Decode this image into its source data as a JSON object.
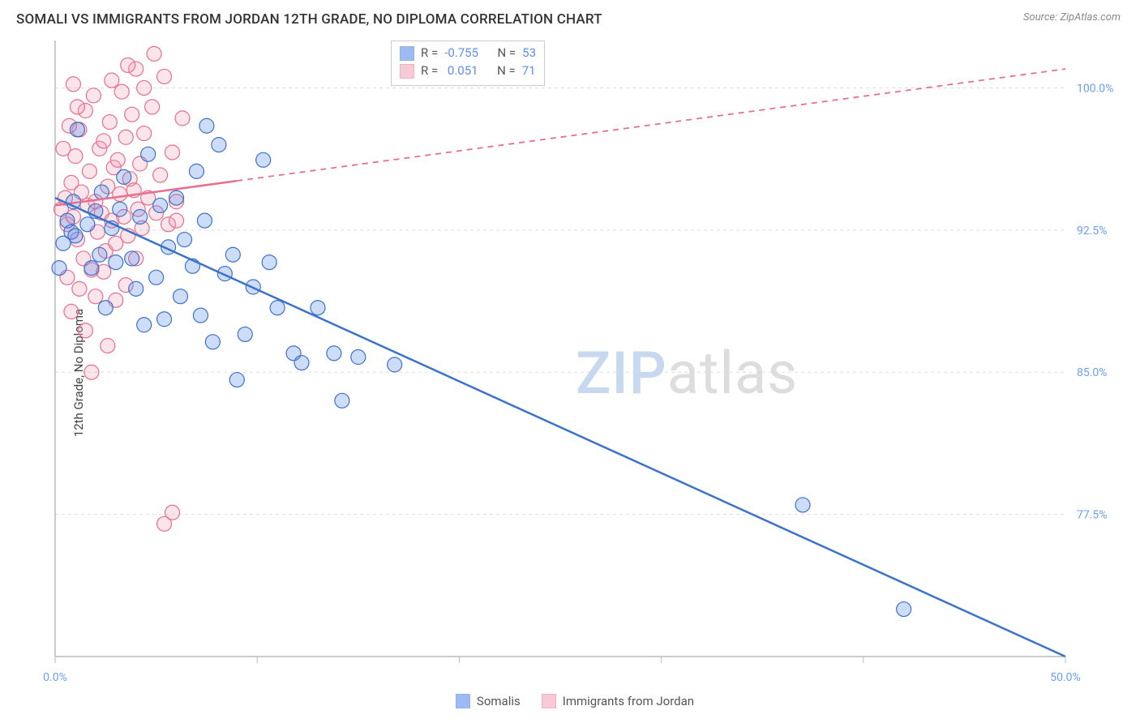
{
  "header": {
    "title": "SOMALI VS IMMIGRANTS FROM JORDAN 12TH GRADE, NO DIPLOMA CORRELATION CHART",
    "source_prefix": "Source: ",
    "source_name": "ZipAtlas.com"
  },
  "chart": {
    "type": "scatter",
    "ylabel": "12th Grade, No Diploma",
    "xlim": [
      0,
      50
    ],
    "ylim": [
      70,
      102.5
    ],
    "xticks": [
      0,
      10,
      20,
      30,
      40,
      50
    ],
    "xtick_labels": [
      "0.0%",
      "",
      "",
      "",
      "",
      "50.0%"
    ],
    "yticks": [
      77.5,
      85.0,
      92.5,
      100.0
    ],
    "ytick_labels": [
      "77.5%",
      "85.0%",
      "92.5%",
      "100.0%"
    ],
    "background_color": "#ffffff",
    "grid_color": "#dddddd",
    "axis_color": "#bbbbbb",
    "label_color_axis": "#6b9ff2",
    "marker_radius": 9,
    "marker_opacity": 0.28,
    "series": {
      "blue": {
        "name": "Somalis",
        "color": "#4a85e8",
        "stroke": "#3d72c9",
        "R": "-0.755",
        "N": "53",
        "regression": {
          "x1": 0,
          "y1": 94.2,
          "x2": 50,
          "y2": 70.0,
          "solid_until_x": 50
        },
        "points": [
          [
            0.4,
            91.8
          ],
          [
            0.6,
            93.0
          ],
          [
            0.8,
            92.4
          ],
          [
            0.9,
            94.0
          ],
          [
            1.0,
            92.2
          ],
          [
            1.6,
            92.8
          ],
          [
            1.1,
            97.8
          ],
          [
            1.8,
            90.5
          ],
          [
            2.0,
            93.5
          ],
          [
            2.2,
            91.2
          ],
          [
            2.3,
            94.5
          ],
          [
            2.5,
            88.4
          ],
          [
            2.8,
            92.6
          ],
          [
            3.0,
            90.8
          ],
          [
            3.2,
            93.6
          ],
          [
            3.4,
            95.3
          ],
          [
            3.8,
            91.0
          ],
          [
            4.0,
            89.4
          ],
          [
            4.2,
            93.2
          ],
          [
            4.4,
            87.5
          ],
          [
            4.6,
            96.5
          ],
          [
            5.0,
            90.0
          ],
          [
            5.2,
            93.8
          ],
          [
            5.4,
            87.8
          ],
          [
            5.6,
            91.6
          ],
          [
            6.0,
            94.2
          ],
          [
            6.2,
            89.0
          ],
          [
            6.4,
            92.0
          ],
          [
            6.8,
            90.6
          ],
          [
            7.0,
            95.6
          ],
          [
            7.2,
            88.0
          ],
          [
            7.4,
            93.0
          ],
          [
            7.5,
            98.0
          ],
          [
            7.8,
            86.6
          ],
          [
            8.1,
            97.0
          ],
          [
            8.4,
            90.2
          ],
          [
            8.8,
            91.2
          ],
          [
            9.0,
            84.6
          ],
          [
            9.4,
            87.0
          ],
          [
            9.8,
            89.5
          ],
          [
            10.3,
            96.2
          ],
          [
            10.6,
            90.8
          ],
          [
            11.0,
            88.4
          ],
          [
            11.8,
            86.0
          ],
          [
            12.2,
            85.5
          ],
          [
            13.0,
            88.4
          ],
          [
            13.8,
            86.0
          ],
          [
            14.2,
            83.5
          ],
          [
            15.0,
            85.8
          ],
          [
            16.8,
            85.4
          ],
          [
            37.0,
            78.0
          ],
          [
            42.0,
            72.5
          ],
          [
            0.2,
            90.5
          ]
        ]
      },
      "pink": {
        "name": "Immigrants from Jordan",
        "color": "#f29fb3",
        "stroke": "#e76f8f",
        "R": "0.051",
        "N": "71",
        "regression": {
          "x1": 0,
          "y1": 93.8,
          "x2": 50,
          "y2": 101.0,
          "solid_until_x": 9.0
        },
        "points": [
          [
            0.3,
            93.6
          ],
          [
            0.5,
            94.2
          ],
          [
            0.6,
            92.8
          ],
          [
            0.8,
            95.0
          ],
          [
            0.9,
            93.2
          ],
          [
            1.0,
            96.4
          ],
          [
            1.1,
            92.0
          ],
          [
            1.2,
            97.8
          ],
          [
            1.3,
            94.5
          ],
          [
            1.4,
            91.0
          ],
          [
            1.5,
            98.8
          ],
          [
            1.6,
            93.8
          ],
          [
            1.7,
            95.6
          ],
          [
            1.8,
            90.4
          ],
          [
            1.9,
            99.6
          ],
          [
            2.0,
            94.0
          ],
          [
            2.1,
            92.4
          ],
          [
            2.2,
            96.8
          ],
          [
            2.3,
            93.4
          ],
          [
            2.4,
            97.2
          ],
          [
            2.5,
            91.4
          ],
          [
            2.6,
            94.8
          ],
          [
            2.7,
            98.2
          ],
          [
            2.8,
            93.0
          ],
          [
            2.9,
            95.8
          ],
          [
            3.0,
            91.8
          ],
          [
            3.1,
            96.2
          ],
          [
            3.2,
            94.4
          ],
          [
            3.3,
            99.8
          ],
          [
            3.4,
            93.2
          ],
          [
            3.5,
            97.4
          ],
          [
            3.6,
            92.2
          ],
          [
            3.7,
            95.2
          ],
          [
            3.8,
            98.6
          ],
          [
            3.9,
            94.6
          ],
          [
            4.0,
            101.0
          ],
          [
            4.1,
            93.6
          ],
          [
            4.2,
            96.0
          ],
          [
            4.3,
            92.6
          ],
          [
            4.4,
            97.6
          ],
          [
            4.6,
            94.2
          ],
          [
            4.8,
            99.0
          ],
          [
            4.9,
            101.8
          ],
          [
            5.0,
            93.4
          ],
          [
            5.2,
            95.4
          ],
          [
            5.4,
            100.6
          ],
          [
            5.6,
            92.8
          ],
          [
            5.8,
            96.6
          ],
          [
            6.0,
            94.0
          ],
          [
            6.3,
            98.4
          ],
          [
            2.0,
            89.0
          ],
          [
            2.6,
            86.4
          ],
          [
            0.8,
            88.2
          ],
          [
            1.5,
            87.2
          ],
          [
            3.0,
            88.8
          ],
          [
            1.2,
            89.4
          ],
          [
            1.8,
            85.0
          ],
          [
            0.6,
            90.0
          ],
          [
            2.4,
            90.3
          ],
          [
            4.0,
            91.0
          ],
          [
            3.5,
            89.6
          ],
          [
            0.4,
            96.8
          ],
          [
            0.9,
            100.2
          ],
          [
            1.1,
            99.0
          ],
          [
            0.7,
            98.0
          ],
          [
            2.8,
            100.4
          ],
          [
            3.6,
            101.2
          ],
          [
            4.4,
            100.0
          ],
          [
            5.4,
            77.0
          ],
          [
            5.8,
            77.6
          ],
          [
            6.0,
            93.0
          ]
        ]
      }
    },
    "watermark": {
      "text_bold": "ZIP",
      "text_rest": "atlas",
      "color_bold": "#c7d8ef",
      "color_rest": "#dddddd"
    },
    "legend_top": {
      "R_label": "R =",
      "N_label": "N ="
    },
    "legend_bottom": [
      {
        "key": "blue"
      },
      {
        "key": "pink"
      }
    ]
  }
}
